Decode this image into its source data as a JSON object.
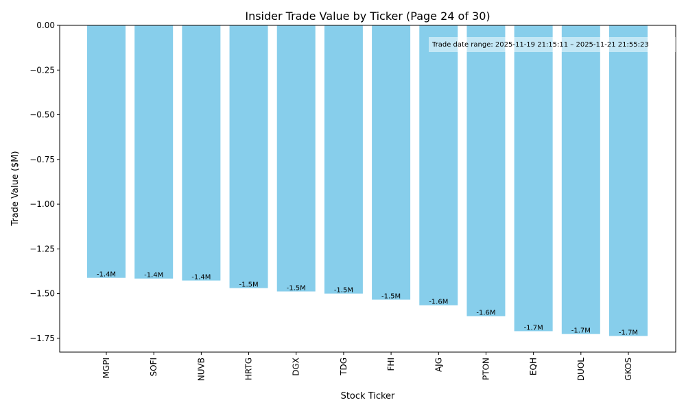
{
  "chart_data": {
    "type": "bar",
    "title": "Insider Trade Value by Ticker (Page 24 of 30)",
    "xlabel": "Stock Ticker",
    "ylabel": "Trade Value ($M)",
    "categories": [
      "MGPI",
      "SOFI",
      "NUVB",
      "HRTG",
      "DGX",
      "TDG",
      "FHI",
      "AJG",
      "PTON",
      "EQH",
      "DUOL",
      "GKOS"
    ],
    "values": [
      -1.412,
      -1.416,
      -1.427,
      -1.469,
      -1.488,
      -1.5,
      -1.534,
      -1.565,
      -1.626,
      -1.71,
      -1.726,
      -1.737
    ],
    "data_labels": [
      "-1.4M",
      "-1.4M",
      "-1.4M",
      "-1.5M",
      "-1.5M",
      "-1.5M",
      "-1.5M",
      "-1.6M",
      "-1.6M",
      "-1.7M",
      "-1.7M",
      "-1.7M"
    ],
    "ylim": [
      -1.827,
      0
    ],
    "yticks": [
      "0.00",
      "−0.25",
      "−0.50",
      "−0.75",
      "−1.00",
      "−1.25",
      "−1.50",
      "−1.75"
    ],
    "ytick_values": [
      0,
      -0.25,
      -0.5,
      -0.75,
      -1.0,
      -1.25,
      -1.5,
      -1.75
    ],
    "annotation": "Trade date range: 2025-11-19 21:15:11 – 2025-11-21 21:55:23",
    "annotation_position": "top-right",
    "grid": false,
    "bar_color": "#87CEEB"
  }
}
